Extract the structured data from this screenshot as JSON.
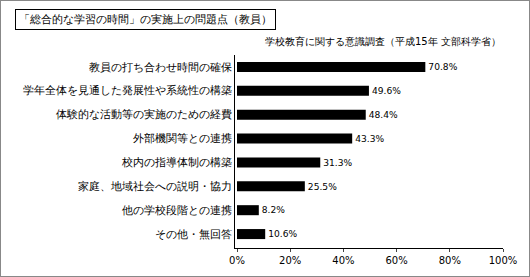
{
  "chart_data": {
    "type": "bar",
    "orientation": "horizontal",
    "title": "「総合的な学習の時間」の実施上の問題点（教員）",
    "subtitle": "学校教育に関する意識調査（平成15年 文部科学省）",
    "categories": [
      "教員の打ち合わせ時間の確保",
      "学年全体を見通した発展性や系統性の構築",
      "体験的な活動等の実施のための経費",
      "外部機関等との連携",
      "校内の指導体制の構築",
      "家庭、地域社会への説明・協力",
      "他の学校段階との連携",
      "その他・無回答"
    ],
    "values": [
      70.8,
      49.6,
      48.4,
      43.3,
      31.3,
      25.5,
      8.2,
      10.6
    ],
    "value_labels": [
      "70.8%",
      "49.6%",
      "48.4%",
      "43.3%",
      "31.3%",
      "25.5%",
      "8.2%",
      "10.6%"
    ],
    "color": "#000000",
    "xlim": [
      0,
      100
    ],
    "xticks": [
      {
        "value": 0,
        "label": "0%"
      },
      {
        "value": 20,
        "label": "20%"
      },
      {
        "value": 40,
        "label": "40%"
      },
      {
        "value": 60,
        "label": "60%"
      },
      {
        "value": 80,
        "label": "80%"
      },
      {
        "value": 100,
        "label": "100%"
      }
    ],
    "grid": false,
    "data_labels": true
  }
}
